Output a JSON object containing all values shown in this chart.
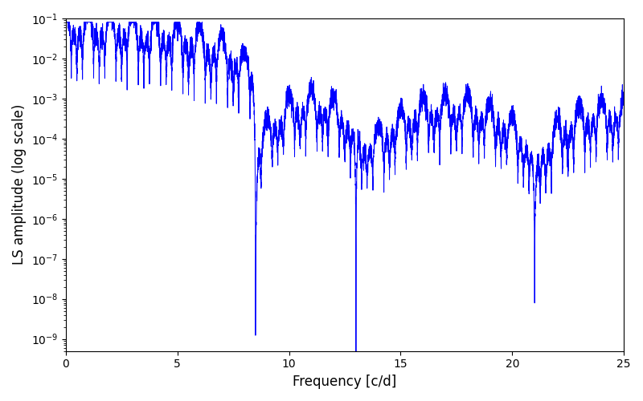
{
  "xlabel": "Frequency [c/d]",
  "ylabel": "LS amplitude (log scale)",
  "line_color": "blue",
  "line_width": 0.7,
  "xmin": 0,
  "xmax": 25,
  "ymin": 5e-10,
  "ymax": 0.1,
  "xticks": [
    0,
    5,
    10,
    15,
    20,
    25
  ],
  "figsize": [
    8.0,
    5.0
  ],
  "dpi": 100,
  "seed": 12345,
  "n_points": 8000
}
